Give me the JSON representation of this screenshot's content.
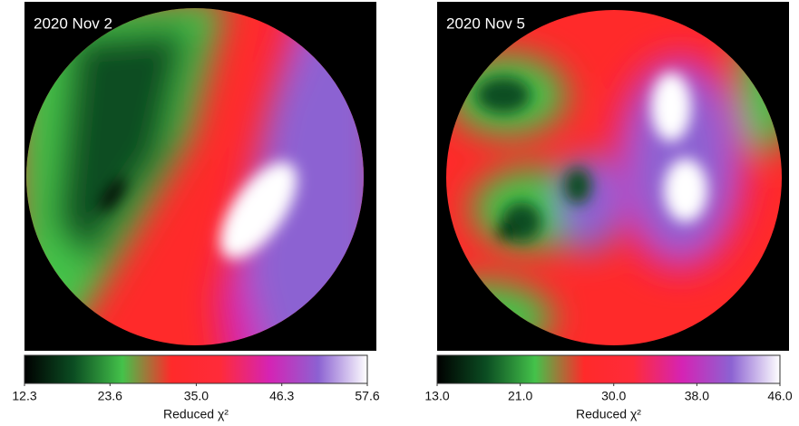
{
  "chart_data": [
    {
      "type": "heatmap",
      "title": "2020 Nov 2",
      "colorbar_label": "Reduced χ²",
      "clim": [
        12.3,
        57.6
      ],
      "colormap": [
        "#000000",
        "#0b4d22",
        "#44c24a",
        "#ff2a2a",
        "#ff2b3a",
        "#d523b4",
        "#8c62d2",
        "#ffffff"
      ],
      "cticks": [
        12.3,
        23.6,
        {
          "value": 35,
          "label": "35.0"
        },
        46.3,
        57.6
      ]
    },
    {
      "type": "heatmap",
      "title": "2020 Nov 5",
      "colorbar_label": "Reduced χ²",
      "clim": [
        13,
        46
      ],
      "colormap": [
        "#000000",
        "#0b4d22",
        "#44c24a",
        "#ff2a2a",
        "#ff2b3a",
        "#d523b4",
        "#8c62d2",
        "#ffffff"
      ],
      "cticks": [
        {
          "value": 13,
          "label": "13.0"
        },
        {
          "value": 21,
          "label": "21.0"
        },
        {
          "value": 30,
          "label": "30.0"
        },
        {
          "value": 38,
          "label": "38.0"
        },
        {
          "value": 46,
          "label": "46.0"
        }
      ]
    }
  ]
}
